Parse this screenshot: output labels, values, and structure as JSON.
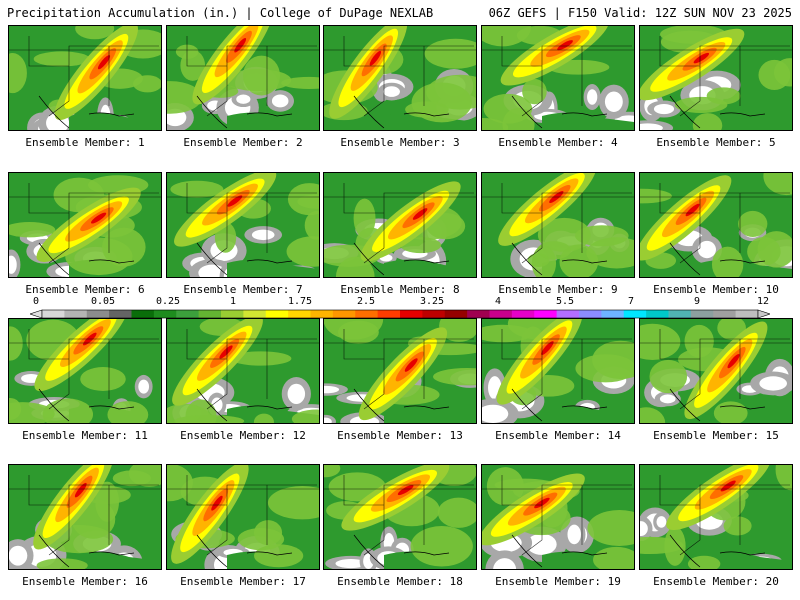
{
  "header": {
    "left": "Precipitation Accumulation (in.) | College of DuPage NEXLAB",
    "right": "06Z GEFS | F150 Valid: 12Z SUN NOV 23 2025"
  },
  "legend": {
    "tick_labels": [
      "0",
      "0.05",
      "0.25",
      "1",
      "1.75",
      "2.5",
      "3.25",
      "4",
      "5.5",
      "7",
      "9",
      "12"
    ],
    "colors": [
      "#d8d8d8",
      "#b4b4b4",
      "#8c8c8c",
      "#646464",
      "#0a6e0a",
      "#1e8c1e",
      "#3ca03c",
      "#64b432",
      "#9acd32",
      "#d2e632",
      "#ffff00",
      "#ffd700",
      "#ffb400",
      "#ff9600",
      "#ff6e00",
      "#ff3c00",
      "#e60000",
      "#be0000",
      "#960000",
      "#a00050",
      "#c8008c",
      "#e600c8",
      "#ff00ff",
      "#b46eff",
      "#8c8cff",
      "#6eb4ff",
      "#00e6ff",
      "#00c8c8",
      "#50b4b4",
      "#8ca0a0",
      "#a0a0a0",
      "#bebebe"
    ]
  },
  "panels": [
    {
      "label": "Ensemble Member: 1"
    },
    {
      "label": "Ensemble Member: 2"
    },
    {
      "label": "Ensemble Member: 3"
    },
    {
      "label": "Ensemble Member: 4"
    },
    {
      "label": "Ensemble Member: 5"
    },
    {
      "label": "Ensemble Member: 6"
    },
    {
      "label": "Ensemble Member: 7"
    },
    {
      "label": "Ensemble Member: 8"
    },
    {
      "label": "Ensemble Member: 9"
    },
    {
      "label": "Ensemble Member: 10"
    },
    {
      "label": "Ensemble Member: 11"
    },
    {
      "label": "Ensemble Member: 12"
    },
    {
      "label": "Ensemble Member: 13"
    },
    {
      "label": "Ensemble Member: 14"
    },
    {
      "label": "Ensemble Member: 15"
    },
    {
      "label": "Ensemble Member: 16"
    },
    {
      "label": "Ensemble Member: 17"
    },
    {
      "label": "Ensemble Member: 18"
    },
    {
      "label": "Ensemble Member: 19"
    },
    {
      "label": "Ensemble Member: 20"
    }
  ]
}
